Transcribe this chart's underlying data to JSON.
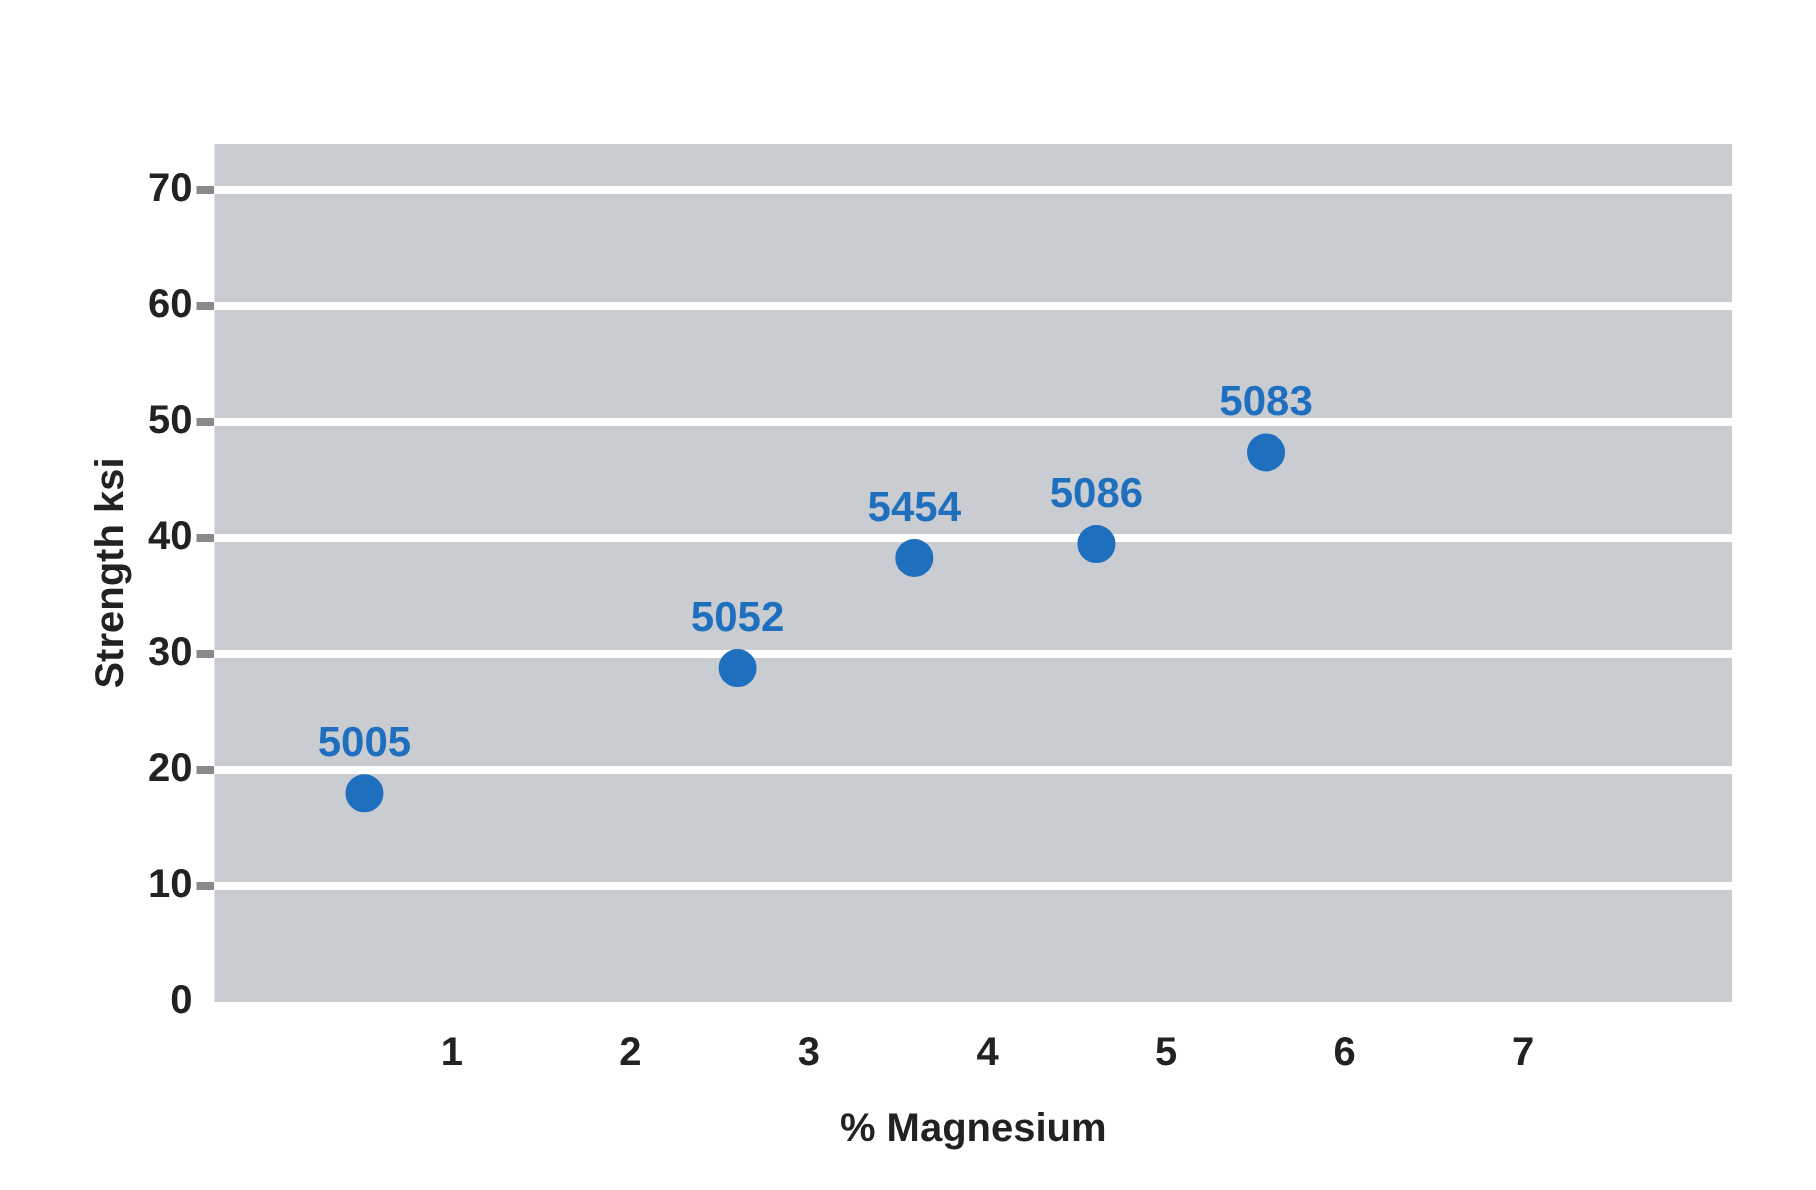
{
  "chart_data": {
    "type": "scatter",
    "xlabel": "% Magnesium",
    "ylabel": "Strength ksi",
    "x": [
      0.51,
      2.6,
      3.59,
      4.61,
      5.56
    ],
    "series": [
      {
        "color": "#1f6fbf",
        "values": [
          18,
          28.8,
          38.3,
          39.5,
          47.4
        ]
      }
    ],
    "xlim": [
      -0.33,
      8.17
    ],
    "xticks": [
      1,
      2,
      3,
      4,
      5,
      6,
      7
    ],
    "ylim": [
      0,
      74
    ],
    "yticks": [
      0,
      10,
      20,
      30,
      40,
      50,
      60,
      70
    ],
    "grid": "y",
    "legend": false,
    "marker": "circle",
    "annotations": [
      {
        "text": "5005",
        "x": 0.51,
        "y": 18
      },
      {
        "text": "5052",
        "x": 2.6,
        "y": 28.8
      },
      {
        "text": "5454",
        "x": 3.59,
        "y": 38.3
      },
      {
        "text": "5086",
        "x": 4.61,
        "y": 39.5
      },
      {
        "text": "5083",
        "x": 5.56,
        "y": 47.4
      }
    ]
  }
}
